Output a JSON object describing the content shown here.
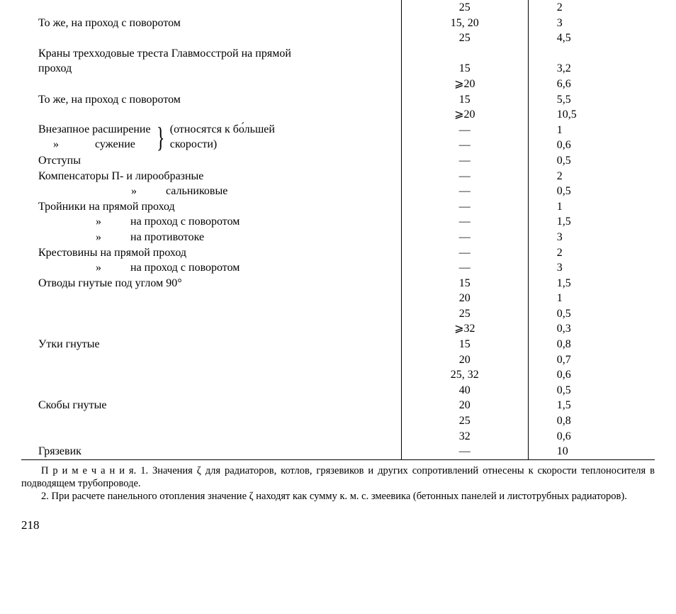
{
  "rows": [
    {
      "desc": "",
      "c2": "25",
      "c3": "2"
    },
    {
      "desc": "То же, на проход с поворотом",
      "c2": "15, 20",
      "c3": "3"
    },
    {
      "desc": "",
      "c2": "25",
      "c3": "4,5"
    },
    {
      "desc": "Краны трехходовые треста Главмосстрой на прямой",
      "c2": "",
      "c3": ""
    },
    {
      "desc": "проход",
      "c2": "15",
      "c3": "3,2",
      "noindent": true
    },
    {
      "desc": "",
      "c2": "⩾20",
      "c3": "6,6"
    },
    {
      "desc": "То же, на проход с поворотом",
      "c2": "15",
      "c3": "5,5"
    },
    {
      "desc": "",
      "c2": "⩾20",
      "c3": "10,5"
    },
    {
      "custom": "brace-expansion"
    },
    {
      "desc": "Отступы",
      "c2": "—",
      "c3": "0,5"
    },
    {
      "desc": "Компенсаторы П- и лирообразные",
      "c2": "—",
      "c3": "2"
    },
    {
      "custom": "dittо-salt"
    },
    {
      "desc": "Тройники на прямой проход",
      "c2": "—",
      "c3": "1"
    },
    {
      "custom": "ditto-tee-turn"
    },
    {
      "custom": "ditto-tee-counter"
    },
    {
      "desc": "Крестовины на прямой проход",
      "c2": "—",
      "c3": "2"
    },
    {
      "custom": "ditto-cross-turn"
    },
    {
      "desc": "Отводы гнутые под углом 90°",
      "c2": "15",
      "c3": "1,5"
    },
    {
      "desc": "",
      "c2": "20",
      "c3": "1"
    },
    {
      "desc": "",
      "c2": "25",
      "c3": "0,5"
    },
    {
      "desc": "",
      "c2": "⩾32",
      "c3": "0,3"
    },
    {
      "desc": "Утки гнутые",
      "c2": "15",
      "c3": "0,8"
    },
    {
      "desc": "",
      "c2": "20",
      "c3": "0,7"
    },
    {
      "desc": "",
      "c2": "25, 32",
      "c3": "0,6"
    },
    {
      "desc": "",
      "c2": "40",
      "c3": "0,5"
    },
    {
      "desc": "Скобы гнутые",
      "c2": "20",
      "c3": "1,5"
    },
    {
      "desc": "",
      "c2": "25",
      "c3": "0,8"
    },
    {
      "desc": "",
      "c2": "32",
      "c3": "0,6"
    },
    {
      "desc": "Грязевик",
      "c2": "—",
      "c3": "10",
      "last": true
    }
  ],
  "brace_block": {
    "left_top": "Внезапное расширение",
    "left_bot_ditto": "»",
    "left_bot": "сужение",
    "right_top": "(относятся к бо́льшей",
    "right_bot": "скорости)",
    "c2_top": "—",
    "c3_top": "1",
    "c2_bot": "—",
    "c3_bot": "0,6"
  },
  "ditto_salt": {
    "ditto": "»",
    "label": "сальниковые",
    "c2": "—",
    "c3": "0,5"
  },
  "ditto_tee_turn": {
    "ditto": "»",
    "label": "на проход с поворотом",
    "c2": "—",
    "c3": "1,5"
  },
  "ditto_tee_counter": {
    "ditto": "»",
    "label": "на противотоке",
    "c2": "—",
    "c3": "3"
  },
  "ditto_cross_turn": {
    "ditto": "»",
    "label": "на проход с поворотом",
    "c2": "—",
    "c3": "3"
  },
  "footnotes": {
    "label": "П р и м е ч а н и я.",
    "n1": "1. Значения ζ для радиаторов, котлов, грязевиков и других сопротивлений отнесены к скорости теплоносителя в подводящем трубопроводе.",
    "n2": "2. При расчете панельного отопления значение ζ находят как сумму к. м. с. змеевика (бетонных панелей и листотрубных радиаторов)."
  },
  "page_number": "218"
}
